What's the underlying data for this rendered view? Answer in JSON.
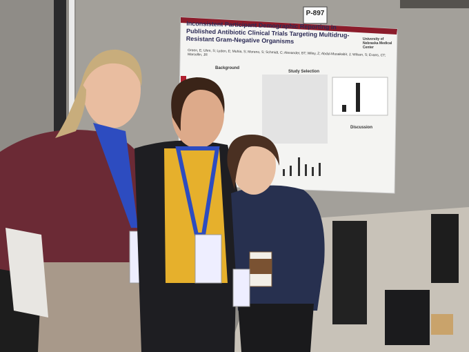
{
  "sign": {
    "label": "P-897"
  },
  "poster": {
    "title": "Inconsistent Participant Demographic Reporting in Published Antibiotic Clinical Trials Targeting Multidrug-Resistant Gram-Negative Organisms",
    "authors": "Green, E; Uhm, S; Lyden, E; Muhia, S; Moreno, S; Schmidt, C; Alexander, BT; Wiley, Z; Abdul-Musakabir, J; Wilson, S; Evans, CT; Marcellin, JR",
    "institution": "University of Nebraska Medical Center",
    "sections": [
      "Background",
      "Study Selection",
      "Discussion"
    ]
  }
}
